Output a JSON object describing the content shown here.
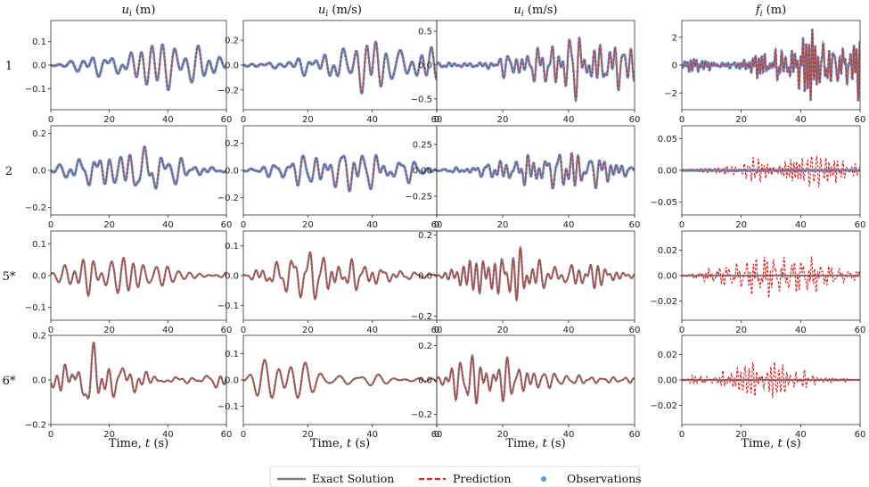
{
  "chart_data": {
    "type": "line",
    "column_titles": [
      "u_i (m)",
      "u̇_i (m/s)",
      "ü_i (m/s)",
      "f_i (m)"
    ],
    "row_labels": [
      "1",
      "2",
      "5*",
      "6*"
    ],
    "xlabel": "Time, t (s)",
    "xlim": [
      0,
      60
    ],
    "xticks": [
      0,
      20,
      40,
      60
    ],
    "legend": {
      "placement": "bottom-center",
      "entries": [
        "Exact Solution",
        "Prediction",
        "Observations"
      ]
    },
    "series_colors": {
      "exact": "#7f7f7f",
      "prediction": "#d62728",
      "observations": "#5b9bd5"
    },
    "panels": [
      {
        "row": 0,
        "col": 0,
        "ylim": [
          -0.19,
          0.19
        ],
        "yticks": [
          -0.1,
          0.0,
          0.1
        ],
        "ytick_labels": [
          "−0.1",
          "0.0",
          "0.1"
        ],
        "amplitude": 0.13,
        "osc_rate": 1.9,
        "observed": true,
        "force_trace": false
      },
      {
        "row": 0,
        "col": 1,
        "ylim": [
          -0.36,
          0.36
        ],
        "yticks": [
          -0.2,
          0.0,
          0.2
        ],
        "ytick_labels": [
          "−0.2",
          "0.0",
          "0.2"
        ],
        "amplitude": 0.22,
        "osc_rate": 2.1,
        "observed": true,
        "force_trace": false
      },
      {
        "row": 0,
        "col": 2,
        "ylim": [
          -0.66,
          0.66
        ],
        "yticks": [
          -0.5,
          0.0,
          0.5
        ],
        "ytick_labels": [
          "−0.5",
          "0.0",
          "0.5"
        ],
        "amplitude": 0.45,
        "osc_rate": 3.4,
        "observed": true,
        "force_trace": false
      },
      {
        "row": 0,
        "col": 3,
        "ylim": [
          -3.2,
          3.2
        ],
        "yticks": [
          -2,
          0,
          2
        ],
        "ytick_labels": [
          "−2",
          "0",
          "2"
        ],
        "amplitude": 2.3,
        "osc_rate": 4.6,
        "observed": true,
        "force_trace": false
      },
      {
        "row": 1,
        "col": 0,
        "ylim": [
          -0.24,
          0.24
        ],
        "yticks": [
          -0.2,
          0.0,
          0.2
        ],
        "ytick_labels": [
          "−0.2",
          "0.0",
          "0.2"
        ],
        "amplitude": 0.15,
        "osc_rate": 1.9,
        "observed": true,
        "force_trace": false
      },
      {
        "row": 1,
        "col": 1,
        "ylim": [
          -0.33,
          0.33
        ],
        "yticks": [
          -0.2,
          0.0,
          0.2
        ],
        "ytick_labels": [
          "−0.2",
          "0.0",
          "0.2"
        ],
        "amplitude": 0.18,
        "osc_rate": 2.1,
        "observed": true,
        "force_trace": false
      },
      {
        "row": 1,
        "col": 2,
        "ylim": [
          -0.43,
          0.43
        ],
        "yticks": [
          -0.25,
          0.0,
          0.25
        ],
        "ytick_labels": [
          "−0.25",
          "0.00",
          "0.25"
        ],
        "amplitude": 0.2,
        "osc_rate": 3.1,
        "observed": true,
        "force_trace": false
      },
      {
        "row": 1,
        "col": 3,
        "ylim": [
          -0.07,
          0.07
        ],
        "yticks": [
          -0.05,
          0.0,
          0.05
        ],
        "ytick_labels": [
          "−0.05",
          "0.00",
          "0.05"
        ],
        "amplitude": 0.03,
        "osc_rate": 4.8,
        "observed": false,
        "force_trace": true
      },
      {
        "row": 2,
        "col": 0,
        "ylim": [
          -0.14,
          0.14
        ],
        "yticks": [
          -0.1,
          0.0,
          0.1
        ],
        "ytick_labels": [
          "−0.1",
          "0.0",
          "0.1"
        ],
        "amplitude": 0.08,
        "osc_rate": 1.9,
        "observed": false,
        "force_trace": false
      },
      {
        "row": 2,
        "col": 1,
        "ylim": [
          -0.15,
          0.15
        ],
        "yticks": [
          -0.1,
          0.0,
          0.1
        ],
        "ytick_labels": [
          "−0.1",
          "0.0",
          "0.1"
        ],
        "amplitude": 0.08,
        "osc_rate": 2.2,
        "observed": false,
        "force_trace": false
      },
      {
        "row": 2,
        "col": 2,
        "ylim": [
          -0.22,
          0.22
        ],
        "yticks": [
          -0.2,
          0.0,
          0.2
        ],
        "ytick_labels": [
          "−0.2",
          "0.0",
          "0.2"
        ],
        "amplitude": 0.13,
        "osc_rate": 3.0,
        "observed": false,
        "force_trace": false
      },
      {
        "row": 2,
        "col": 3,
        "ylim": [
          -0.035,
          0.035
        ],
        "yticks": [
          -0.02,
          0.0,
          0.02
        ],
        "ytick_labels": [
          "−0.02",
          "0.00",
          "0.02"
        ],
        "amplitude": 0.013,
        "osc_rate": 4.8,
        "observed": false,
        "force_trace": true
      },
      {
        "row": 3,
        "col": 0,
        "ylim": [
          -0.2,
          0.2
        ],
        "yticks": [
          -0.2,
          0.0,
          0.2
        ],
        "ytick_labels": [
          "−0.2",
          "0.0",
          "0.2"
        ],
        "amplitude": 0.13,
        "osc_rate": 1.9,
        "observed": false,
        "force_trace": false
      },
      {
        "row": 3,
        "col": 1,
        "ylim": [
          -0.17,
          0.17
        ],
        "yticks": [
          -0.1,
          0.0,
          0.1
        ],
        "ytick_labels": [
          "−0.1",
          "0.0",
          "0.1"
        ],
        "amplitude": 0.1,
        "osc_rate": 2.2,
        "observed": false,
        "force_trace": false
      },
      {
        "row": 3,
        "col": 2,
        "ylim": [
          -0.26,
          0.26
        ],
        "yticks": [
          -0.2,
          0.0,
          0.2
        ],
        "ytick_labels": [
          "−0.2",
          "0.0",
          "0.2"
        ],
        "amplitude": 0.15,
        "osc_rate": 3.0,
        "observed": false,
        "force_trace": false
      },
      {
        "row": 3,
        "col": 3,
        "ylim": [
          -0.035,
          0.035
        ],
        "yticks": [
          -0.02,
          0.0,
          0.02
        ],
        "ytick_labels": [
          "−0.02",
          "0.00",
          "0.02"
        ],
        "amplitude": 0.013,
        "osc_rate": 4.8,
        "observed": false,
        "force_trace": true
      }
    ]
  }
}
